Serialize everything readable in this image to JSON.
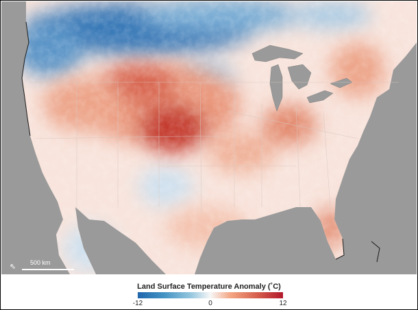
{
  "legend": {
    "title": "Land Surface Temperature Anomaly (˚C)",
    "min_label": "-12",
    "mid_label": "0",
    "max_label": "12",
    "colors": [
      "#2166ac",
      "#92c5de",
      "#f7f7f7",
      "#f4a582",
      "#b2182b"
    ]
  },
  "scale_bar": {
    "label": "500 km"
  },
  "map": {
    "water_color": "#9a9a9a",
    "features": [
      "north-arrow-icon",
      "country-borders",
      "state-borders",
      "great-lakes"
    ]
  }
}
